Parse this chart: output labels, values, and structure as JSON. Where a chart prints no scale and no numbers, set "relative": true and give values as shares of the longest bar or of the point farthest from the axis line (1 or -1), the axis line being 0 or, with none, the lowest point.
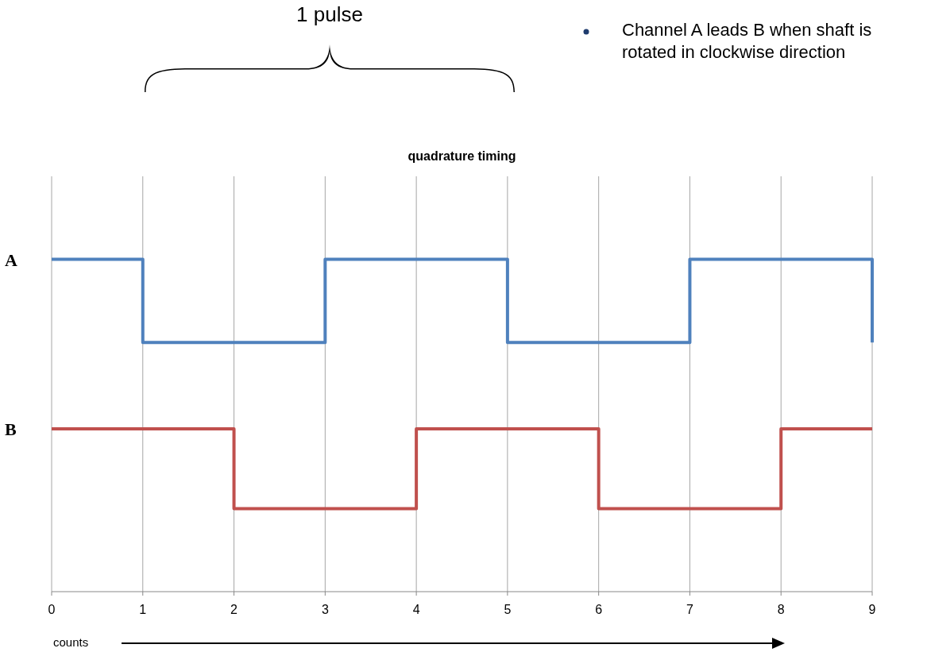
{
  "chart_data": {
    "type": "step",
    "title": "quadrature timing",
    "xlabel": "counts",
    "x": [
      0,
      1,
      2,
      3,
      4,
      5,
      6,
      7,
      8,
      9
    ],
    "xlim": [
      0,
      9
    ],
    "xticks": [
      0,
      1,
      2,
      3,
      4,
      5,
      6,
      7,
      8,
      9
    ],
    "relative": true,
    "grid": "x",
    "marker": "none",
    "line_style": "solid",
    "series": [
      {
        "name": "A",
        "color": "#4f81bd",
        "values": [
          1,
          0.75,
          0.75,
          1,
          1,
          0.75,
          0.75,
          1,
          1,
          0.75
        ]
      },
      {
        "name": "B",
        "color": "#c0504d",
        "values": [
          0.49,
          0.49,
          0.25,
          0.25,
          0.49,
          0.49,
          0.25,
          0.25,
          0.49,
          0.49
        ]
      }
    ],
    "annotations": [
      "1 pulse",
      "Channel A leads B when shaft is rotated in clockwise direction"
    ]
  }
}
